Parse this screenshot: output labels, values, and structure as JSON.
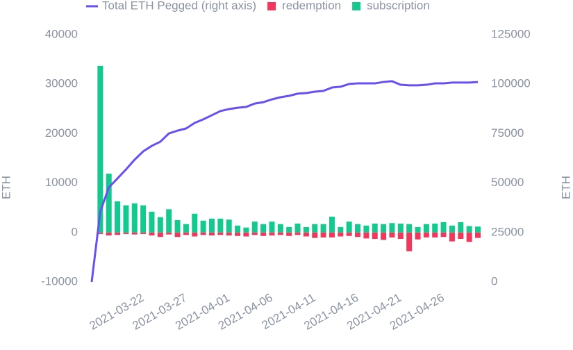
{
  "chart_data": {
    "type": "bar",
    "categories": [
      null,
      null,
      null,
      null,
      null,
      null,
      "2021-03-22",
      null,
      null,
      null,
      null,
      "2021-03-27",
      null,
      null,
      null,
      null,
      "2021-04-01",
      null,
      null,
      null,
      null,
      "2021-04-06",
      null,
      null,
      null,
      null,
      "2021-04-11",
      null,
      null,
      null,
      null,
      "2021-04-16",
      null,
      null,
      null,
      null,
      "2021-04-21",
      null,
      null,
      null,
      null,
      "2021-04-26",
      null,
      null,
      null,
      null
    ],
    "series": [
      {
        "name": "Total ETH Pegged (right axis)",
        "type": "line",
        "axis": "y2",
        "color": "#6a4ef5",
        "values": [
          0,
          35500,
          47800,
          52300,
          56900,
          61800,
          66000,
          68800,
          70900,
          75100,
          76500,
          77600,
          80400,
          82200,
          84300,
          86400,
          87400,
          88100,
          88500,
          90200,
          90900,
          92300,
          93400,
          94100,
          95200,
          95500,
          96200,
          96600,
          98300,
          98700,
          100100,
          100400,
          100400,
          100400,
          101100,
          101500,
          99700,
          99400,
          99400,
          99700,
          100400,
          100400,
          100800,
          100800,
          100800,
          101100
        ]
      },
      {
        "name": "redemption",
        "type": "bar",
        "color": "#f5365c",
        "values": [
          null,
          -300,
          -600,
          -500,
          -300,
          -400,
          -300,
          -600,
          -900,
          -400,
          -900,
          -500,
          -800,
          -500,
          -600,
          -500,
          -600,
          -700,
          -800,
          -500,
          -700,
          -600,
          -500,
          -700,
          -500,
          -800,
          -1100,
          -1000,
          -1000,
          -800,
          -700,
          -900,
          -1200,
          -1300,
          -1500,
          -1000,
          -1300,
          -3800,
          -1400,
          -1000,
          -1000,
          -900,
          -1800,
          -1300,
          -1900,
          -1100
        ]
      },
      {
        "name": "subscription",
        "type": "bar",
        "color": "#13c98d",
        "values": [
          null,
          33700,
          11900,
          6300,
          5500,
          5900,
          5500,
          4200,
          3100,
          4700,
          2500,
          1700,
          3800,
          2400,
          2800,
          2800,
          2600,
          1400,
          1000,
          2200,
          1700,
          2200,
          1700,
          1100,
          1800,
          1100,
          1700,
          1700,
          3200,
          1100,
          2200,
          1700,
          1400,
          1800,
          1700,
          1900,
          1800,
          1700,
          1100,
          1700,
          1800,
          2100,
          1400,
          2100,
          1300,
          1200
        ]
      }
    ],
    "ylabel": "ETH",
    "y2label": "ETH",
    "ylim": [
      -10000,
      40000
    ],
    "yticks": [
      -10000,
      0,
      10000,
      20000,
      30000,
      40000
    ],
    "y2lim": [
      0,
      125000
    ],
    "y2ticks": [
      0,
      25000,
      50000,
      75000,
      100000,
      125000
    ],
    "grid": false
  }
}
